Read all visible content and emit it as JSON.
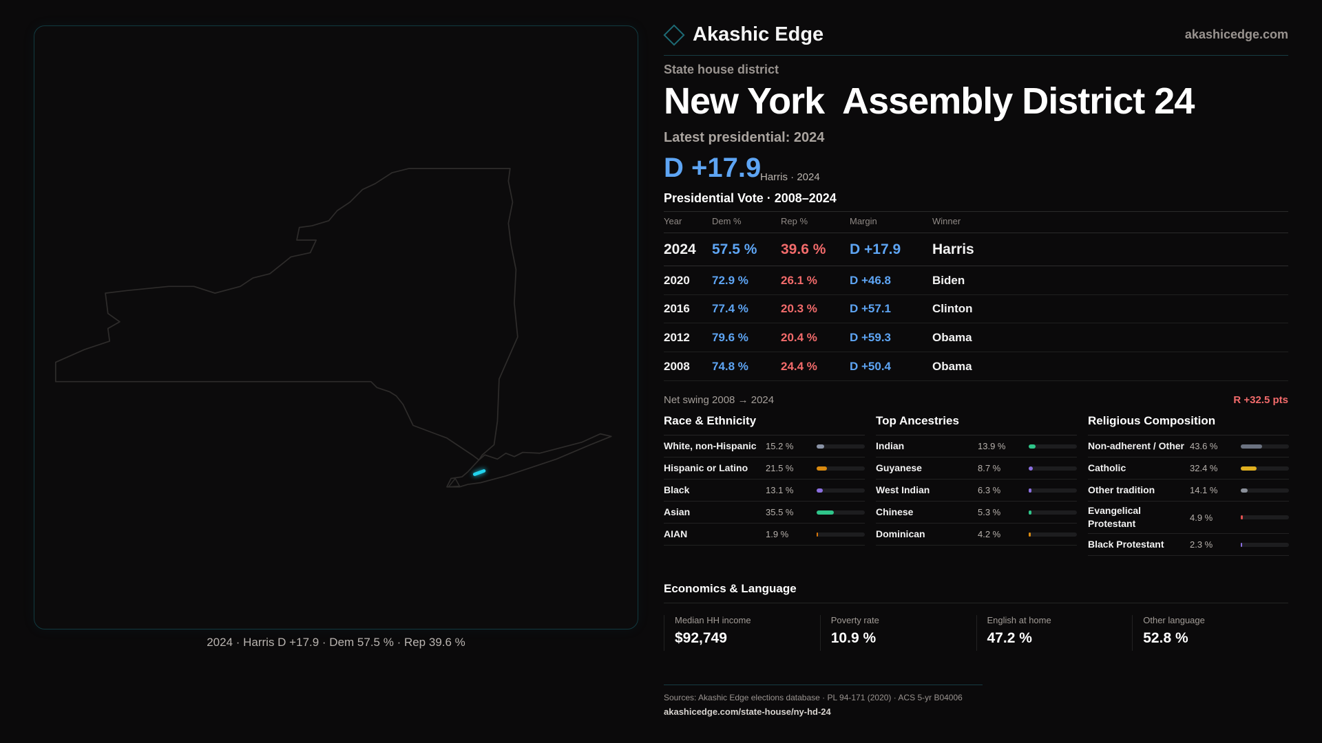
{
  "brand": {
    "name": "Akashic Edge",
    "site": "akashicedge.com"
  },
  "district": {
    "kicker": "State house district",
    "title": "New York  Assembly District 24"
  },
  "latest": {
    "label": "Latest presidential: 2024",
    "margin": "D +17.9",
    "sub": "Harris · 2024"
  },
  "colors": {
    "dem": "#5ea5f4",
    "rep": "#f26b6b",
    "accent": "#22d3ee"
  },
  "map": {
    "caption": "2024 · Harris D +17.9 · Dem 57.5 % · Rep 39.6 %",
    "highlight_color": "#22d3ee"
  },
  "pres": {
    "title": "Presidential Vote · 2008–2024",
    "headers": [
      "Year",
      "Dem %",
      "Rep %",
      "Margin",
      "Winner"
    ],
    "rows": [
      [
        "2024",
        "57.5 %",
        "39.6 %",
        "D +17.9",
        "Harris"
      ],
      [
        "2020",
        "72.9 %",
        "26.1 %",
        "D +46.8",
        "Biden"
      ],
      [
        "2016",
        "77.4 %",
        "20.3 %",
        "D +57.1",
        "Clinton"
      ],
      [
        "2012",
        "79.6 %",
        "20.4 %",
        "D +59.3",
        "Obama"
      ],
      [
        "2008",
        "74.8 %",
        "24.4 %",
        "D +50.4",
        "Obama"
      ]
    ],
    "swing_label": "Net swing 2008 → 2024",
    "swing_value": "R +32.5 pts"
  },
  "sections": [
    {
      "title": "Race & Ethnicity",
      "items": [
        {
          "label": "White, non-Hispanic",
          "value": "15.2 %",
          "pct": 15.2,
          "color": "#8a93a6"
        },
        {
          "label": "Hispanic or Latino",
          "value": "21.5 %",
          "pct": 21.5,
          "color": "#d98a10"
        },
        {
          "label": "Black",
          "value": "13.1 %",
          "pct": 13.1,
          "color": "#8b6fe0"
        },
        {
          "label": "Asian",
          "value": "35.5 %",
          "pct": 35.5,
          "color": "#2fc58a"
        },
        {
          "label": "AIAN",
          "value": "1.9 %",
          "pct": 1.9,
          "color": "#d9770b"
        }
      ]
    },
    {
      "title": "Top Ancestries",
      "items": [
        {
          "label": "Indian",
          "value": "13.9 %",
          "pct": 13.9,
          "color": "#2fc58a"
        },
        {
          "label": "Guyanese",
          "value": "8.7 %",
          "pct": 8.7,
          "color": "#8b6fe0"
        },
        {
          "label": "West Indian",
          "value": "6.3 %",
          "pct": 6.3,
          "color": "#8b6fe0"
        },
        {
          "label": "Chinese",
          "value": "5.3 %",
          "pct": 5.3,
          "color": "#2fc58a"
        },
        {
          "label": "Dominican",
          "value": "4.2 %",
          "pct": 4.2,
          "color": "#d98a10"
        }
      ]
    },
    {
      "title": "Religious Composition",
      "items": [
        {
          "label": "Non-adherent / Other",
          "value": "43.6 %",
          "pct": 43.6,
          "color": "#6b7280"
        },
        {
          "label": "Catholic",
          "value": "32.4 %",
          "pct": 32.4,
          "color": "#e0b020"
        },
        {
          "label": "Other tradition",
          "value": "14.1 %",
          "pct": 14.1,
          "color": "#8a8f99"
        },
        {
          "label": "Evangelical Protestant",
          "value": "4.9 %",
          "pct": 4.9,
          "color": "#e05050"
        },
        {
          "label": "Black Protestant",
          "value": "2.3 %",
          "pct": 2.3,
          "color": "#8b6fe0"
        }
      ]
    }
  ],
  "economics": {
    "title": "Economics & Language",
    "cards": [
      {
        "label": "Median HH income",
        "value": "$92,749"
      },
      {
        "label": "Poverty rate",
        "value": "10.9 %"
      },
      {
        "label": "English at home",
        "value": "47.2 %"
      },
      {
        "label": "Other language",
        "value": "52.8 %"
      }
    ]
  },
  "footer": {
    "sources": "Sources: Akashic Edge elections database · PL 94-171 (2020) · ACS 5-yr B04006",
    "url": "akashicedge.com/state-house/ny-hd-24"
  }
}
